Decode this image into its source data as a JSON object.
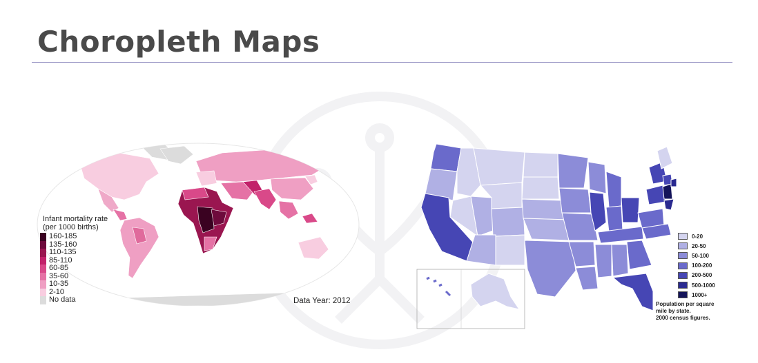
{
  "slide": {
    "title": "Choropleth Maps"
  },
  "world_map": {
    "legend_title_1": "Infant mortality rate",
    "legend_title_2": "(per 1000 births)",
    "legend": [
      {
        "label": "160-185",
        "color": "#3a0221"
      },
      {
        "label": "135-160",
        "color": "#6e0a3c"
      },
      {
        "label": "110-135",
        "color": "#9a1650"
      },
      {
        "label": "85-110",
        "color": "#c2226a"
      },
      {
        "label": "60-85",
        "color": "#d94989"
      },
      {
        "label": "35-60",
        "color": "#e572a5"
      },
      {
        "label": "10-35",
        "color": "#ef9fc3"
      },
      {
        "label": "2-10",
        "color": "#f8cde0"
      },
      {
        "label": "No data",
        "color": "#dcdcdc"
      }
    ],
    "data_year": "Data Year: 2012"
  },
  "us_map": {
    "legend": [
      {
        "label": "0-20",
        "color": "#d4d4ef"
      },
      {
        "label": "20-50",
        "color": "#b0b0e4"
      },
      {
        "label": "50-100",
        "color": "#8c8cd8"
      },
      {
        "label": "100-200",
        "color": "#6a6acb"
      },
      {
        "label": "200-500",
        "color": "#4646b4"
      },
      {
        "label": "500-1000",
        "color": "#2a2a90"
      },
      {
        "label": "1000+",
        "color": "#14145a"
      }
    ],
    "caption_1": "Population per square",
    "caption_2": "mile by state.",
    "caption_3": "2000 census figures."
  }
}
